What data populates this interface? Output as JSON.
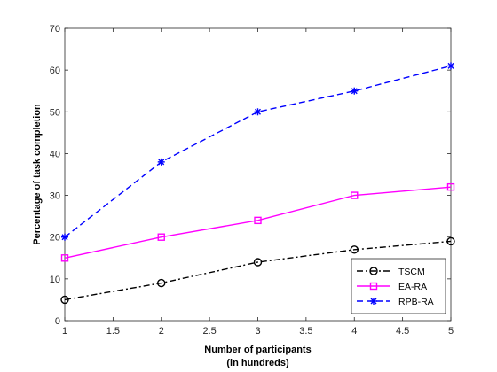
{
  "chart_data": {
    "type": "line",
    "x": [
      1,
      2,
      3,
      4,
      5
    ],
    "series": [
      {
        "name": "TSCM",
        "values": [
          5,
          9,
          14,
          17,
          19
        ],
        "color": "#000000",
        "dash": "dashdot",
        "marker": "circle"
      },
      {
        "name": "EA-RA",
        "values": [
          15,
          20,
          24,
          30,
          32
        ],
        "color": "#ff00ff",
        "dash": "solid",
        "marker": "square"
      },
      {
        "name": "RPB-RA",
        "values": [
          20,
          38,
          50,
          55,
          61
        ],
        "color": "#0000ff",
        "dash": "dashed",
        "marker": "asterisk"
      }
    ],
    "xlim": [
      1,
      5
    ],
    "ylim": [
      0,
      70
    ],
    "xticks": [
      1,
      1.5,
      2,
      2.5,
      3,
      3.5,
      4,
      4.5,
      5
    ],
    "xtick_labels": [
      "1",
      "1.5",
      "2",
      "2.5",
      "3",
      "3.5",
      "4",
      "4.5",
      "5"
    ],
    "yticks": [
      0,
      10,
      20,
      30,
      40,
      50,
      60,
      70
    ],
    "ytick_labels": [
      "0",
      "10",
      "20",
      "30",
      "40",
      "50",
      "60",
      "70"
    ],
    "xlabel": "Number of participants",
    "xlabel_line2": "(in hundreds)",
    "ylabel": "Percentage of task completion",
    "title": "",
    "grid": false,
    "legend_position": "bottom-right"
  }
}
